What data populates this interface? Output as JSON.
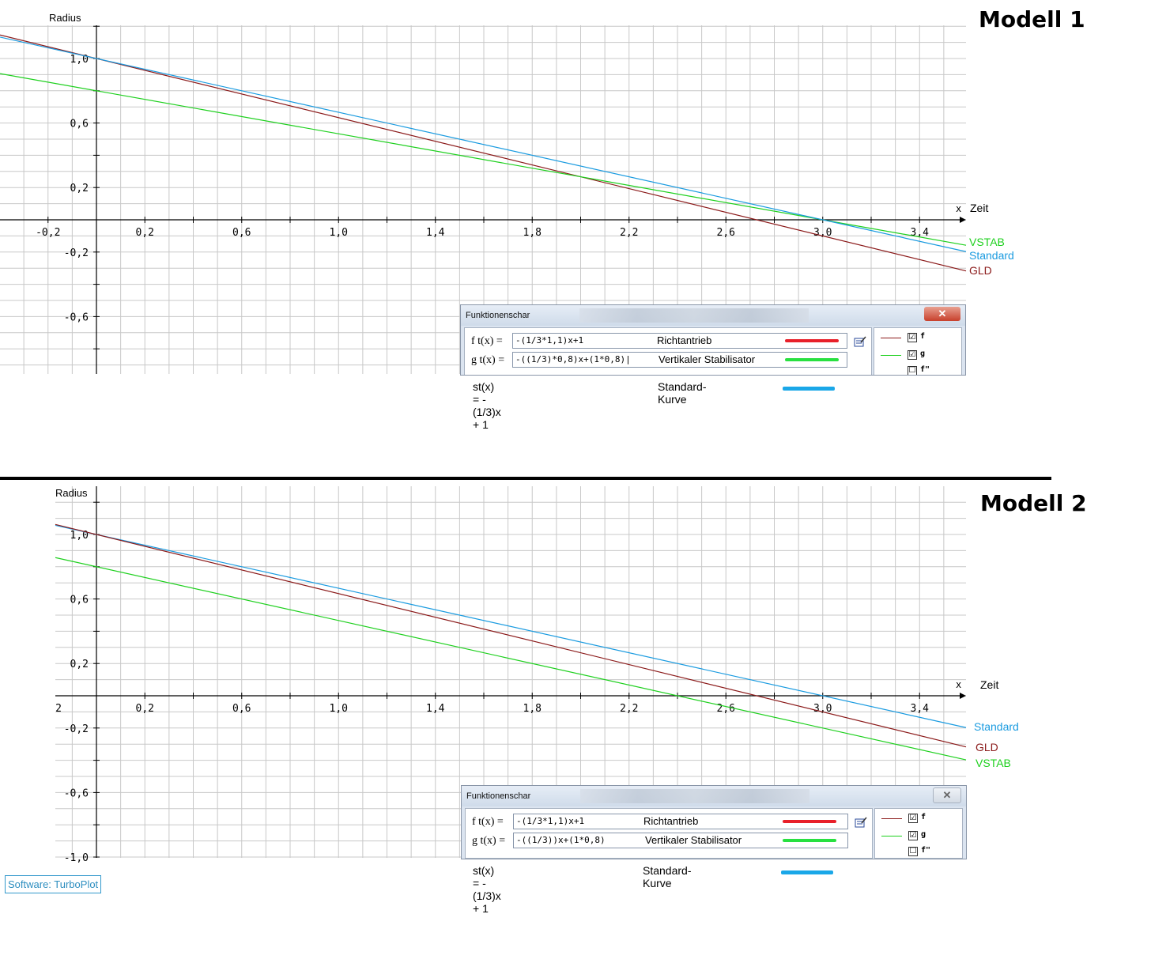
{
  "colors": {
    "f_line": "#8b1a1a",
    "g_line": "#1ed01e",
    "s_line": "#1a9be0",
    "grid": "#c8c8c8",
    "axis": "#000000",
    "swatch_f": "#e8202a",
    "swatch_g": "#28e040",
    "swatch_s": "#1aa7e8",
    "credit": "#2f8fc0"
  },
  "chart_data": [
    {
      "type": "line",
      "title": "Modell 1",
      "xlabel": "Zeit",
      "ylabel": "Radius",
      "x_axis_letter": "x",
      "xlim": [
        -0.4,
        3.6
      ],
      "ylim": [
        -0.9,
        1.2
      ],
      "grid": true,
      "x_ticks": [
        "-0,2",
        "0,2",
        "0,6",
        "1,0",
        "1,4",
        "1,8",
        "2,2",
        "2,6",
        "3,0",
        "3,4"
      ],
      "y_ticks": [
        "1,0",
        "0,6",
        "0,2",
        "-0,2",
        "-0,6"
      ],
      "series": [
        {
          "key": "f",
          "name": "GLD",
          "slope": -0.366667,
          "intercept": 1.0
        },
        {
          "key": "g",
          "name": "VSTAB",
          "slope": -0.266667,
          "intercept": 0.8
        },
        {
          "key": "s",
          "name": "Standard",
          "slope": -0.333333,
          "intercept": 1.0
        }
      ]
    },
    {
      "type": "line",
      "title": "Modell 2",
      "xlabel": "Zeit",
      "ylabel": "Radius",
      "x_axis_letter": "x",
      "xlim": [
        -0.16,
        3.6
      ],
      "ylim": [
        -1.0,
        1.2
      ],
      "grid": true,
      "x_ticks": [
        "2",
        "0,2",
        "0,6",
        "1,0",
        "1,4",
        "1,8",
        "2,2",
        "2,6",
        "3,0",
        "3,4"
      ],
      "y_ticks": [
        "1,0",
        "0,6",
        "0,2",
        "-0,2",
        "-0,6",
        "-1,0"
      ],
      "series": [
        {
          "key": "s",
          "name": "Standard",
          "slope": -0.333333,
          "intercept": 1.0
        },
        {
          "key": "f",
          "name": "GLD",
          "slope": -0.366667,
          "intercept": 1.0
        },
        {
          "key": "g",
          "name": "VSTAB",
          "slope": -0.333333,
          "intercept": 0.8
        }
      ]
    }
  ],
  "panels": [
    {
      "title": "Modell 1",
      "dialog": {
        "title": "Funktionenschar",
        "close_symbol": "✕",
        "f_label": "f t(x) =",
        "f_expr": "-(1/3*1,1)x+1",
        "f_desc": "Richtantrieb",
        "g_label": "g t(x) =",
        "g_expr": "-((1/3)*0,8)x+(1*0,8)|",
        "g_desc": "Vertikaler Stabilisator",
        "legend": [
          {
            "label": "f",
            "checked": "☑"
          },
          {
            "label": "g",
            "checked": "☑"
          },
          {
            "label": "f\"",
            "checked": "☐"
          }
        ]
      },
      "st_label": "st(x)  = - (1/3)x + 1",
      "st_desc": "Standard-Kurve"
    },
    {
      "title": "Modell 2",
      "dialog": {
        "title": "Funktionenschar",
        "close_symbol": "✕",
        "f_label": "f t(x) =",
        "f_expr": "-(1/3*1,1)x+1",
        "f_desc": "Richtantrieb",
        "g_label": "g t(x) =",
        "g_expr": "-((1/3))x+(1*0,8)",
        "g_desc": "Vertikaler Stabilisator",
        "legend": [
          {
            "label": "f",
            "checked": "☑"
          },
          {
            "label": "g",
            "checked": "☑"
          },
          {
            "label": "f\"",
            "checked": "☐"
          }
        ]
      },
      "st_label": "st(x)  = - (1/3)x + 1",
      "st_desc": "Standard-Kurve"
    }
  ],
  "credit": "Software: TurboPlot"
}
